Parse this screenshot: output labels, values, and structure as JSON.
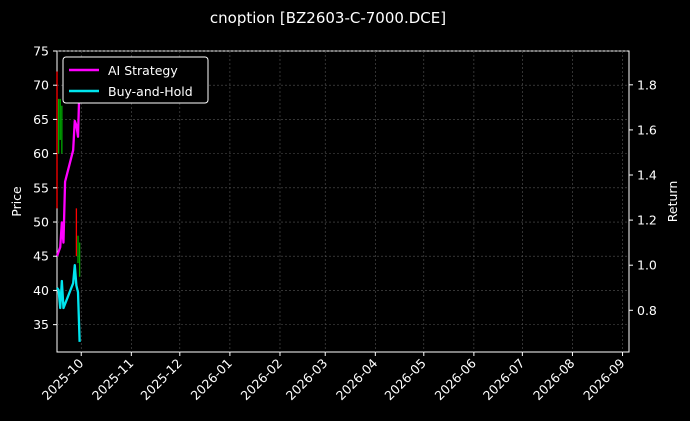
{
  "chart_data": {
    "type": "line",
    "title": "cnoption [BZ2603-C-7000.DCE]",
    "xlabel": "",
    "ylabel": "Price",
    "y2label": "Return",
    "xlim": [
      "2025-09-16",
      "2026-09-05"
    ],
    "ylim": [
      31,
      75
    ],
    "y2lim": [
      0.615,
      1.95
    ],
    "x_ticks": [
      "2025-10",
      "2025-11",
      "2025-12",
      "2026-01",
      "2026-02",
      "2026-03",
      "2026-04",
      "2026-05",
      "2026-06",
      "2026-07",
      "2026-08",
      "2026-09"
    ],
    "y_ticks": [
      35,
      40,
      45,
      50,
      55,
      60,
      65,
      70,
      75
    ],
    "y2_ticks": [
      0.8,
      1.0,
      1.2,
      1.4,
      1.6,
      1.8
    ],
    "grid": true,
    "legend_position": "top-left",
    "candles": [
      {
        "date": "2025-09-16",
        "low": 52,
        "high": 72,
        "color": "#ff0000"
      },
      {
        "date": "2025-09-17",
        "low": 60,
        "high": 68,
        "color": "#00aa00"
      },
      {
        "date": "2025-09-18",
        "low": 62,
        "high": 68,
        "color": "#00aa00"
      },
      {
        "date": "2025-09-19",
        "low": 60,
        "high": 67,
        "color": "#00aa00"
      },
      {
        "date": "2025-09-28",
        "low": 45,
        "high": 52,
        "color": "#ff0000"
      },
      {
        "date": "2025-09-29",
        "low": 44,
        "high": 48,
        "color": "#00aa00"
      },
      {
        "date": "2025-09-30",
        "low": 42,
        "high": 47,
        "color": "#00aa00"
      }
    ],
    "series": [
      {
        "name": "AI Strategy",
        "axis": "right",
        "color": "#ff00ff",
        "points": [
          [
            "2025-09-16",
            1.04
          ],
          [
            "2025-09-17",
            1.06
          ],
          [
            "2025-09-18",
            1.08
          ],
          [
            "2025-09-19",
            1.19
          ],
          [
            "2025-09-20",
            1.1
          ],
          [
            "2025-09-21",
            1.37
          ],
          [
            "2025-09-26",
            1.51
          ],
          [
            "2025-09-27",
            1.64
          ],
          [
            "2025-09-28",
            1.62
          ],
          [
            "2025-09-29",
            1.57
          ],
          [
            "2025-09-30",
            1.82
          ]
        ]
      },
      {
        "name": "Buy-and-Hold",
        "axis": "right",
        "color": "#00e5ee",
        "points": [
          [
            "2025-09-16",
            0.9
          ],
          [
            "2025-09-17",
            0.89
          ],
          [
            "2025-09-18",
            0.81
          ],
          [
            "2025-09-19",
            0.93
          ],
          [
            "2025-09-20",
            0.81
          ],
          [
            "2025-09-26",
            0.92
          ],
          [
            "2025-09-27",
            1.0
          ],
          [
            "2025-09-28",
            0.91
          ],
          [
            "2025-09-29",
            0.88
          ],
          [
            "2025-09-30",
            0.66
          ]
        ]
      }
    ]
  }
}
